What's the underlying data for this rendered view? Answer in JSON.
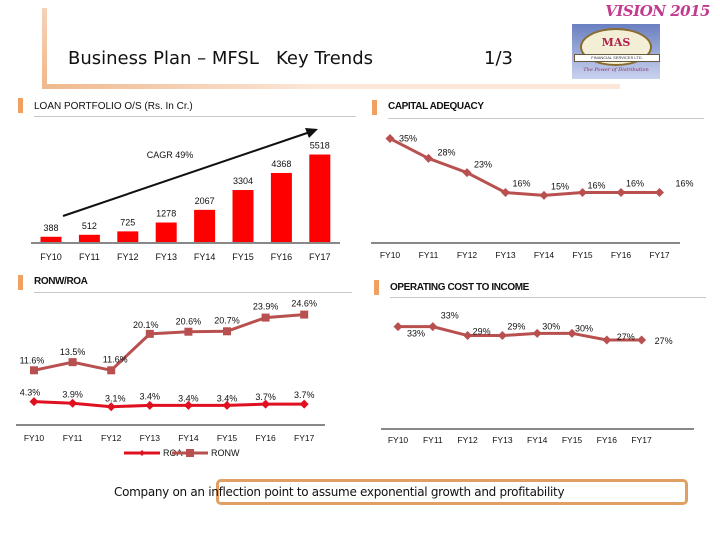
{
  "header": {
    "title": "Business Plan – MFSL   Key Trends",
    "page": "1/3",
    "vision": "VISION 2015",
    "logo": {
      "name": "MAS",
      "band": "FINANCIAL SERVICES LTD.",
      "tagline": "The Power of Distribution"
    }
  },
  "footer": {
    "text": "Company on an inflection point to assume exponential growth and profitability"
  },
  "chart_data": [
    {
      "id": "loan",
      "type": "bar",
      "title": "LOAN PORTFOLIO O/S (Rs. In Cr.)",
      "categories": [
        "FY10",
        "FY11",
        "FY12",
        "FY13",
        "FY14",
        "FY15",
        "FY16",
        "FY17"
      ],
      "values": [
        388,
        512,
        725,
        1278,
        2067,
        3304,
        4368,
        5518
      ],
      "labels": [
        "388",
        "512",
        "725",
        "1278",
        "2067",
        "3304",
        "4368",
        "5518"
      ],
      "annotation": "CAGR 49%",
      "color": "#ff0000",
      "ylim": [
        0,
        5800
      ]
    },
    {
      "id": "car",
      "type": "line",
      "title": "CAPITAL ADEQUACY",
      "categories": [
        "FY10",
        "FY11",
        "FY12",
        "FY13",
        "FY14",
        "FY15",
        "FY16",
        "FY17"
      ],
      "values": [
        35,
        28,
        23,
        16,
        15,
        16,
        16,
        16
      ],
      "labels": [
        "35%",
        "28%",
        "23%",
        "16%",
        "15%",
        "16%",
        "16%",
        "16%"
      ],
      "color": "#b85050",
      "ylim": [
        0,
        38
      ]
    },
    {
      "id": "ronw",
      "type": "line",
      "title": "RONW/ROA",
      "categories": [
        "FY10",
        "FY11",
        "FY12",
        "FY13",
        "FY14",
        "FY15",
        "FY16",
        "FY17"
      ],
      "series": [
        {
          "name": "ROA",
          "values": [
            4.3,
            3.9,
            3.1,
            3.4,
            3.4,
            3.4,
            3.7,
            3.7
          ],
          "labels": [
            "4.3%",
            "3.9%",
            "3.1%",
            "3.4%",
            "3.4%",
            "3.4%",
            "3.7%",
            "3.7%"
          ],
          "color": "#e01020"
        },
        {
          "name": "RONW",
          "values": [
            11.6,
            13.5,
            11.6,
            20.1,
            20.6,
            20.7,
            23.9,
            24.6
          ],
          "labels": [
            "11.6%",
            "13.5%",
            "11.6%",
            "20.1%",
            "20.6%",
            "20.7%",
            "23.9%",
            "24.6%"
          ],
          "color": "#b85050"
        }
      ],
      "legend": "bottom",
      "ylim": [
        0,
        28
      ]
    },
    {
      "id": "opex",
      "type": "line",
      "title": "OPERATING COST TO INCOME",
      "categories": [
        "FY10",
        "FY11",
        "FY12",
        "FY13",
        "FY14",
        "FY15",
        "FY16",
        "FY17"
      ],
      "values": [
        33,
        33,
        29,
        29,
        30,
        30,
        27,
        27
      ],
      "labels": [
        "33%",
        "33%",
        "29%",
        "29%",
        "30%",
        "30%",
        "27%",
        "27%"
      ],
      "color": "#b85050",
      "ylim": [
        0,
        45
      ]
    }
  ]
}
